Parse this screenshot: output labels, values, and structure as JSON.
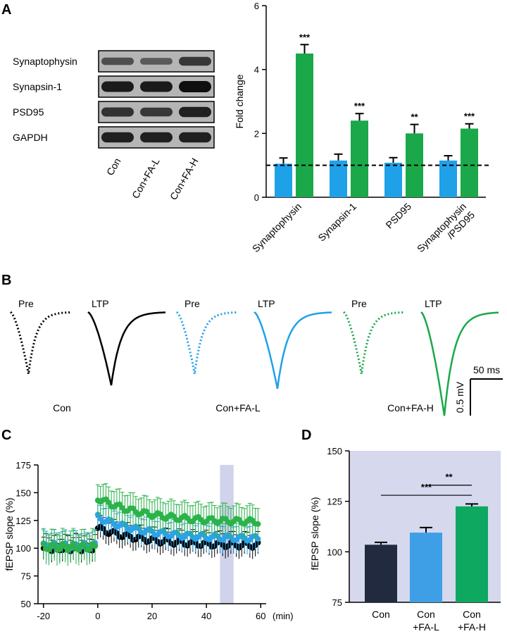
{
  "panels": {
    "a": {
      "letter": "A",
      "blot_labels": [
        "Synaptophysin",
        "Synapsin-1",
        "PSD95",
        "GAPDH"
      ],
      "lane_labels": [
        "Con",
        "Con+FA-L",
        "Con+FA-H"
      ],
      "band_intensity": [
        [
          0.45,
          0.35,
          0.65
        ],
        [
          0.9,
          0.9,
          1.0
        ],
        [
          0.7,
          0.65,
          0.85
        ],
        [
          0.85,
          0.85,
          0.85
        ]
      ]
    },
    "b": {
      "letter": "B",
      "groups": [
        {
          "name": "Con",
          "pre_label": "Pre",
          "ltp_label": "LTP",
          "color": "#000000",
          "pre_depth": 0.55,
          "ltp_depth": 0.65
        },
        {
          "name": "Con+FA-L",
          "pre_label": "Pre",
          "ltp_label": "LTP",
          "color": "#1fa1e8",
          "pre_depth": 0.55,
          "ltp_depth": 0.68
        },
        {
          "name": "Con+FA-H",
          "pre_label": "Pre",
          "ltp_label": "LTP",
          "color": "#1aa84a",
          "pre_depth": 0.55,
          "ltp_depth": 0.92
        }
      ],
      "scale_time": "50 ms",
      "scale_amp": "0.5 mV"
    },
    "c": {
      "letter": "C"
    },
    "d": {
      "letter": "D"
    }
  },
  "chart_data": [
    {
      "type": "bar",
      "panel": "A",
      "ylabel": "Fold change",
      "ylim": [
        0,
        6
      ],
      "yticks": [
        0,
        2,
        4,
        6
      ],
      "categories": [
        "Synaptophysin",
        "Synapsin-1",
        "PSD95",
        "Synaptophysin\n/PSD95"
      ],
      "series": [
        {
          "name": "Con",
          "color": "#1fa1e8",
          "values": [
            1.05,
            1.15,
            1.08,
            1.15
          ],
          "errors": [
            0.18,
            0.2,
            0.16,
            0.15
          ]
        },
        {
          "name": "Con+FA-H",
          "color": "#1aa84a",
          "values": [
            4.5,
            2.4,
            2.0,
            2.15
          ],
          "errors": [
            0.28,
            0.22,
            0.28,
            0.15
          ]
        }
      ],
      "significance": [
        "***",
        "***",
        "**",
        "***"
      ],
      "reference_line": 1
    },
    {
      "type": "scatter",
      "panel": "C",
      "ylabel": "fEPSP slope (%)",
      "xlabel": "(min)",
      "xlim": [
        -22,
        62
      ],
      "ylim": [
        50,
        175
      ],
      "xticks": [
        -20,
        0,
        20,
        40,
        60
      ],
      "yticks": [
        50,
        75,
        100,
        125,
        150,
        175
      ],
      "highlight_x_range": [
        45,
        50
      ],
      "series": [
        {
          "name": "Con",
          "color": "#000000",
          "baseline": 100,
          "post_start": 118,
          "post_end": 102,
          "err": 10
        },
        {
          "name": "Con+FA-L",
          "color": "#2ba3e8",
          "baseline": 102,
          "post_start": 128,
          "post_end": 108,
          "err": 12
        },
        {
          "name": "Con+FA-H",
          "color": "#2bb34a",
          "baseline": 101,
          "post_start": 145,
          "post_end": 123,
          "err": 14
        }
      ]
    },
    {
      "type": "bar",
      "panel": "D",
      "ylabel": "fEPSP slope (%)",
      "ylim": [
        75,
        150
      ],
      "yticks": [
        75,
        100,
        125,
        150
      ],
      "categories": [
        "Con",
        "Con\n+FA-L",
        "Con\n+FA-H"
      ],
      "values": [
        103.5,
        109.5,
        122.5
      ],
      "errors": [
        1.2,
        2.5,
        1.2
      ],
      "colors": [
        "#222a40",
        "#3f9fe6",
        "#0ea860"
      ],
      "background": "#d6d8ee",
      "comparisons": [
        {
          "from": 1,
          "to": 2,
          "label": "**",
          "y": 133
        },
        {
          "from": 0,
          "to": 2,
          "label": "***",
          "y": 128
        }
      ]
    }
  ]
}
